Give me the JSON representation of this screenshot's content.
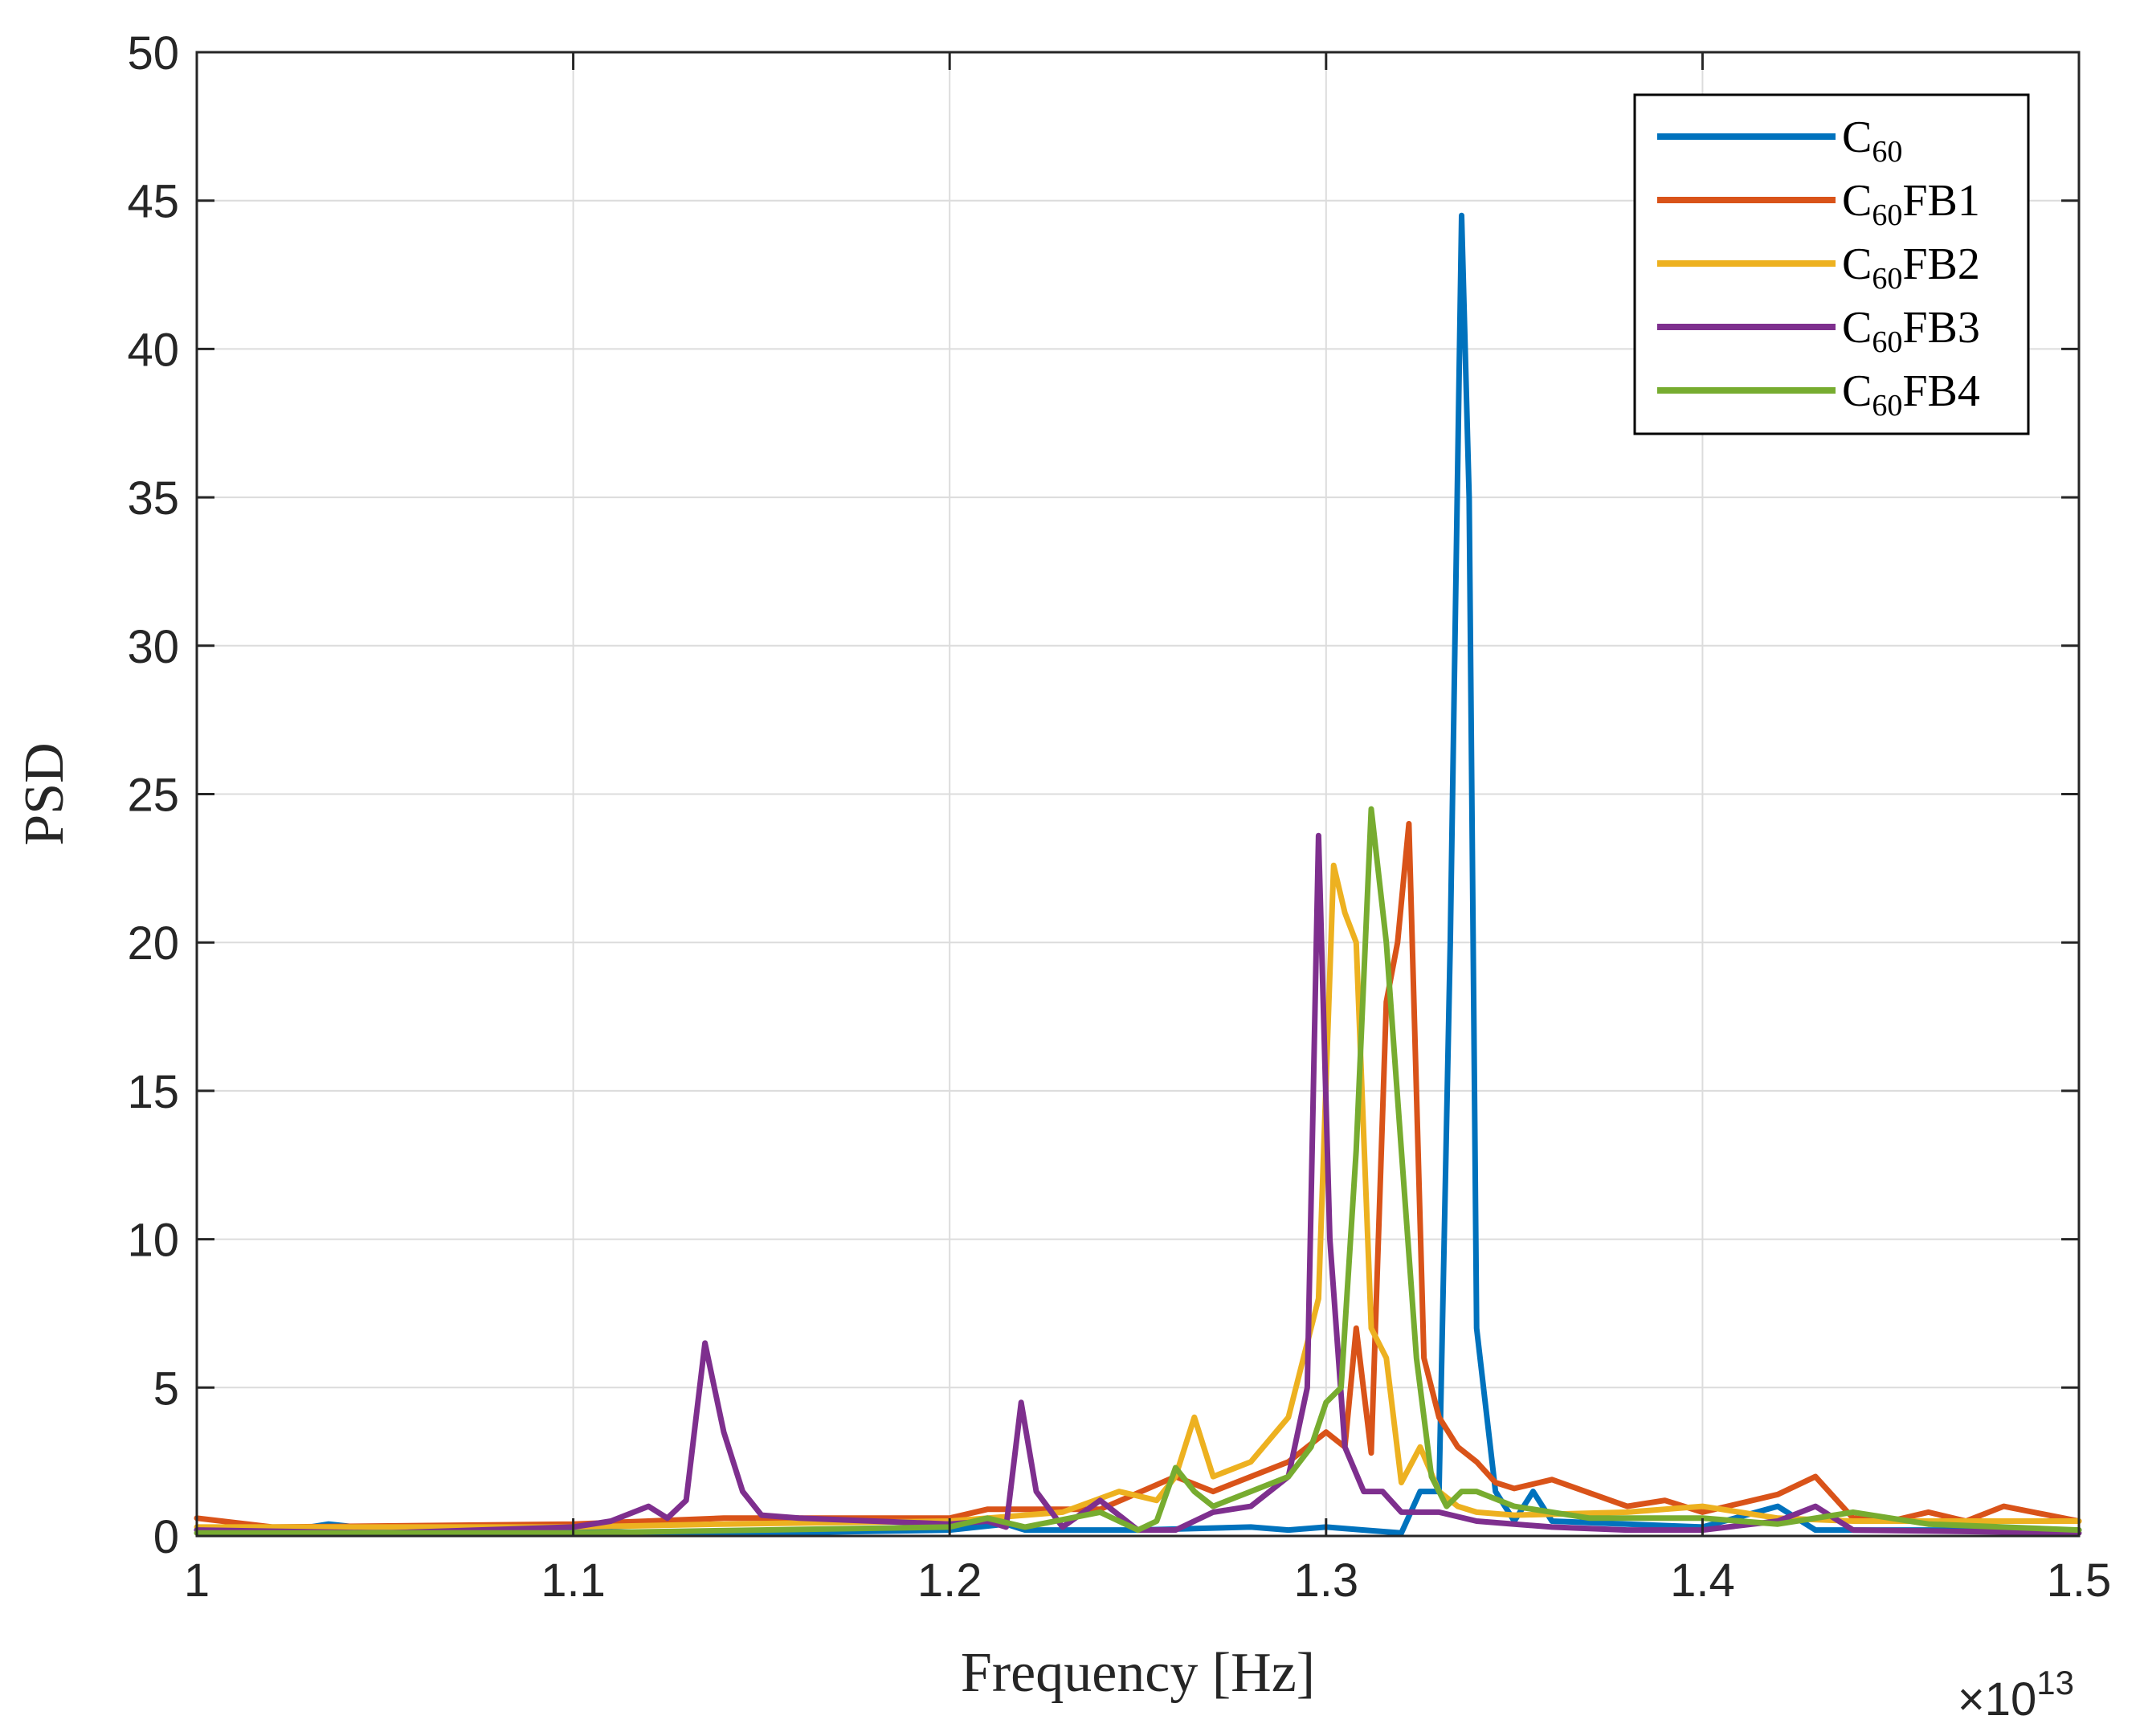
{
  "chart_data": {
    "type": "line",
    "xlabel": "Frequency [Hz]",
    "ylabel": "PSD",
    "x_exponent_label": "×10",
    "x_exponent_power": "13",
    "x_scale_factor": 10000000000000.0,
    "xlim": [
      1.0,
      1.5
    ],
    "ylim": [
      0,
      50
    ],
    "xticks": [
      1.0,
      1.1,
      1.2,
      1.3,
      1.4,
      1.5
    ],
    "xtick_labels": [
      "1",
      "1.1",
      "1.2",
      "1.3",
      "1.4",
      "1.5"
    ],
    "yticks": [
      0,
      5,
      10,
      15,
      20,
      25,
      30,
      35,
      40,
      45,
      50
    ],
    "ytick_labels": [
      "0",
      "5",
      "10",
      "15",
      "20",
      "25",
      "30",
      "35",
      "40",
      "45",
      "50"
    ],
    "grid": true,
    "legend_position": "top-right",
    "series": [
      {
        "name": "C60",
        "name_base": "C",
        "name_sub": "60",
        "name_suffix": "",
        "color": "#0072bd",
        "x": [
          1.0,
          1.02,
          1.035,
          1.05,
          1.08,
          1.1,
          1.12,
          1.15,
          1.2,
          1.215,
          1.22,
          1.25,
          1.28,
          1.29,
          1.3,
          1.31,
          1.32,
          1.325,
          1.33,
          1.333,
          1.336,
          1.338,
          1.34,
          1.345,
          1.35,
          1.355,
          1.36,
          1.38,
          1.4,
          1.42,
          1.43,
          1.45,
          1.5
        ],
        "y": [
          0.2,
          0.1,
          0.4,
          0.2,
          0.1,
          0.2,
          0.1,
          0.1,
          0.2,
          0.4,
          0.2,
          0.2,
          0.3,
          0.2,
          0.3,
          0.2,
          0.1,
          1.5,
          1.5,
          20.0,
          44.5,
          35.0,
          7.0,
          1.5,
          0.5,
          1.5,
          0.5,
          0.4,
          0.3,
          1.0,
          0.2,
          0.2,
          0.2
        ]
      },
      {
        "name": "C60FB1",
        "name_base": "C",
        "name_sub": "60",
        "name_suffix": "FB1",
        "color": "#d95319",
        "x": [
          1.0,
          1.02,
          1.1,
          1.14,
          1.2,
          1.21,
          1.24,
          1.26,
          1.27,
          1.28,
          1.29,
          1.3,
          1.305,
          1.308,
          1.312,
          1.316,
          1.319,
          1.322,
          1.326,
          1.33,
          1.335,
          1.34,
          1.345,
          1.35,
          1.36,
          1.38,
          1.39,
          1.4,
          1.42,
          1.43,
          1.44,
          1.45,
          1.46,
          1.47,
          1.48,
          1.5
        ],
        "y": [
          0.6,
          0.3,
          0.4,
          0.6,
          0.6,
          0.9,
          0.9,
          2.0,
          1.5,
          2.0,
          2.5,
          3.5,
          3.0,
          7.0,
          2.8,
          18.0,
          20.0,
          24.0,
          6.0,
          4.0,
          3.0,
          2.5,
          1.8,
          1.6,
          1.9,
          1.0,
          1.2,
          0.8,
          1.4,
          2.0,
          0.6,
          0.5,
          0.8,
          0.5,
          1.0,
          0.5
        ]
      },
      {
        "name": "C60FB2",
        "name_base": "C",
        "name_sub": "60",
        "name_suffix": "FB2",
        "color": "#edb120",
        "x": [
          1.0,
          1.05,
          1.1,
          1.14,
          1.2,
          1.23,
          1.245,
          1.255,
          1.26,
          1.265,
          1.27,
          1.28,
          1.29,
          1.298,
          1.302,
          1.305,
          1.308,
          1.312,
          1.316,
          1.32,
          1.325,
          1.33,
          1.335,
          1.34,
          1.35,
          1.38,
          1.4,
          1.42,
          1.44,
          1.46,
          1.5
        ],
        "y": [
          0.3,
          0.3,
          0.3,
          0.4,
          0.5,
          0.8,
          1.5,
          1.2,
          2.0,
          4.0,
          2.0,
          2.5,
          4.0,
          8.0,
          22.6,
          21.0,
          20.0,
          7.0,
          6.0,
          1.8,
          3.0,
          1.5,
          1.0,
          0.8,
          0.7,
          0.8,
          1.0,
          0.6,
          0.5,
          0.5,
          0.5
        ]
      },
      {
        "name": "C60FB3",
        "name_base": "C",
        "name_sub": "60",
        "name_suffix": "FB3",
        "color": "#7e2f8e",
        "x": [
          1.0,
          1.05,
          1.1,
          1.11,
          1.12,
          1.125,
          1.13,
          1.135,
          1.14,
          1.145,
          1.15,
          1.16,
          1.2,
          1.21,
          1.215,
          1.219,
          1.223,
          1.23,
          1.24,
          1.25,
          1.26,
          1.27,
          1.28,
          1.29,
          1.295,
          1.298,
          1.301,
          1.305,
          1.31,
          1.315,
          1.32,
          1.33,
          1.34,
          1.35,
          1.36,
          1.38,
          1.4,
          1.42,
          1.43,
          1.44,
          1.5
        ],
        "y": [
          0.2,
          0.1,
          0.3,
          0.5,
          1.0,
          0.6,
          1.2,
          6.5,
          3.5,
          1.5,
          0.7,
          0.6,
          0.4,
          0.5,
          0.3,
          4.5,
          1.5,
          0.3,
          1.2,
          0.2,
          0.2,
          0.8,
          1.0,
          2.0,
          5.0,
          23.6,
          10.0,
          3.0,
          1.5,
          1.5,
          0.8,
          0.8,
          0.5,
          0.4,
          0.3,
          0.2,
          0.2,
          0.5,
          1.0,
          0.2,
          0.1
        ]
      },
      {
        "name": "C60FB4",
        "name_base": "C",
        "name_sub": "60",
        "name_suffix": "FB4",
        "color": "#77ac30",
        "x": [
          1.0,
          1.05,
          1.1,
          1.15,
          1.2,
          1.21,
          1.22,
          1.24,
          1.25,
          1.255,
          1.26,
          1.265,
          1.27,
          1.28,
          1.29,
          1.296,
          1.3,
          1.304,
          1.308,
          1.312,
          1.316,
          1.32,
          1.324,
          1.328,
          1.332,
          1.336,
          1.34,
          1.35,
          1.37,
          1.4,
          1.42,
          1.44,
          1.46,
          1.5
        ],
        "y": [
          0.1,
          0.1,
          0.1,
          0.2,
          0.3,
          0.6,
          0.3,
          0.8,
          0.2,
          0.5,
          2.3,
          1.5,
          1.0,
          1.5,
          2.0,
          3.0,
          4.5,
          5.0,
          13.0,
          24.5,
          20.0,
          13.0,
          6.0,
          2.0,
          1.0,
          1.5,
          1.5,
          1.0,
          0.6,
          0.6,
          0.4,
          0.8,
          0.4,
          0.2
        ]
      }
    ]
  }
}
